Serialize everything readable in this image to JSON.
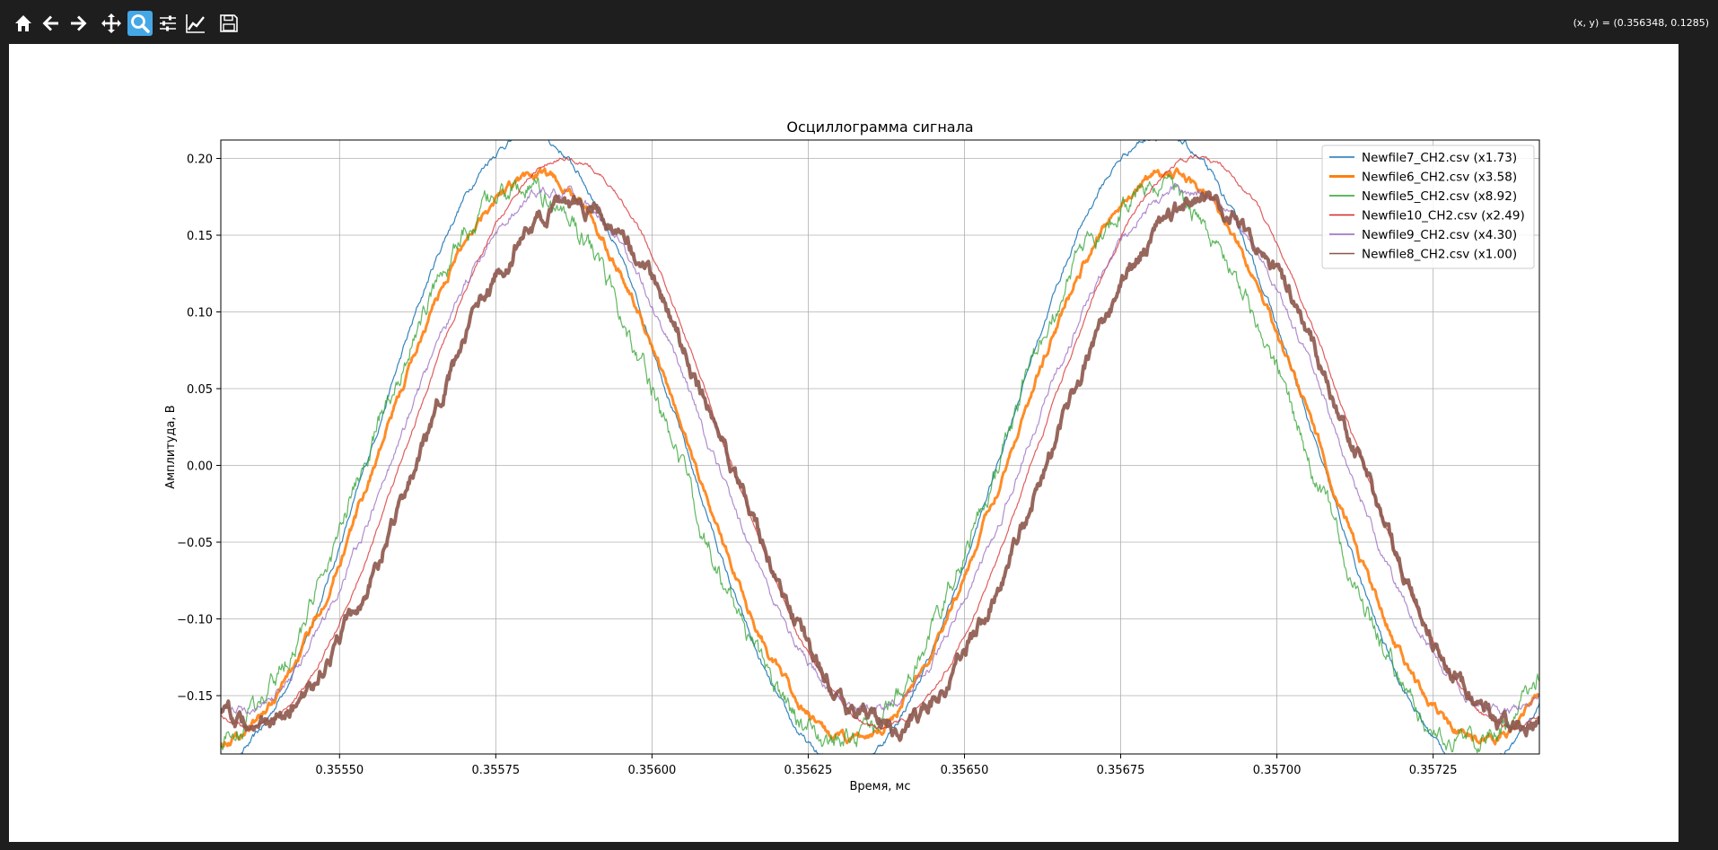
{
  "toolbar": {
    "buttons": [
      {
        "name": "home",
        "icon": "home-icon",
        "active": false
      },
      {
        "name": "back",
        "icon": "arrow-left-icon",
        "active": false
      },
      {
        "name": "forward",
        "icon": "arrow-right-icon",
        "active": false
      },
      {
        "name": "pan",
        "icon": "move-icon",
        "active": false
      },
      {
        "name": "zoom",
        "icon": "zoom-icon",
        "active": true
      },
      {
        "name": "configure-subplots",
        "icon": "sliders-icon",
        "active": false
      },
      {
        "name": "edit-axis",
        "icon": "line-chart-icon",
        "active": false
      },
      {
        "name": "save",
        "icon": "floppy-disk-icon",
        "active": false
      }
    ],
    "coords": "(x, y) = (0.356348, 0.1285)",
    "active_color": "#45a8e6"
  },
  "chart_data": {
    "type": "line",
    "title": "Осциллограмма сигнала",
    "xlabel": "Время, мс",
    "ylabel": "Амплитуда, В",
    "xlim": [
      0.35531,
      0.35742
    ],
    "ylim": [
      -0.188,
      0.212
    ],
    "xticks": [
      0.3555,
      0.35575,
      0.356,
      0.35625,
      0.3565,
      0.35675,
      0.357,
      0.35725
    ],
    "xtick_labels": [
      "0.35550",
      "0.35575",
      "0.35600",
      "0.35625",
      "0.35650",
      "0.35675",
      "0.35700",
      "0.35725"
    ],
    "yticks": [
      -0.15,
      -0.1,
      -0.05,
      0.0,
      0.05,
      0.1,
      0.15,
      0.2
    ],
    "ytick_labels": [
      "−0.15",
      "−0.10",
      "−0.05",
      "0.00",
      "0.05",
      "0.10",
      "0.15",
      "0.20"
    ],
    "grid": true,
    "legend_position": "top-right",
    "period": 0.00101,
    "series": [
      {
        "name": "Newfile7_CH2.csv (x1.73)",
        "color": "#1f77b4",
        "amplitude": 0.205,
        "offset": 0.01,
        "phase": 0.35555,
        "noise": 0.003,
        "linewidth": 1.2
      },
      {
        "name": "Newfile6_CH2.csv (x3.58)",
        "color": "#ff7f0e",
        "amplitude": 0.184,
        "offset": 0.005,
        "phase": 0.35556,
        "noise": 0.004,
        "linewidth": 3
      },
      {
        "name": "Newfile5_CH2.csv (x8.92)",
        "color": "#2ca02c",
        "amplitude": 0.18,
        "offset": 0.0,
        "phase": 0.35554,
        "noise": 0.009,
        "linewidth": 1.2
      },
      {
        "name": "Newfile10_CH2.csv (x2.49)",
        "color": "#d62728",
        "amplitude": 0.185,
        "offset": 0.015,
        "phase": 0.35561,
        "noise": 0.002,
        "linewidth": 1.2
      },
      {
        "name": "Newfile9_CH2.csv (x4.30)",
        "color": "#9467bd",
        "amplitude": 0.17,
        "offset": 0.01,
        "phase": 0.35559,
        "noise": 0.004,
        "linewidth": 1.2
      },
      {
        "name": "Newfile8_CH2.csv (x1.00)",
        "color": "#8c564b",
        "amplitude": 0.17,
        "offset": 0.0,
        "phase": 0.35562,
        "noise": 0.007,
        "linewidth": 4
      }
    ]
  }
}
